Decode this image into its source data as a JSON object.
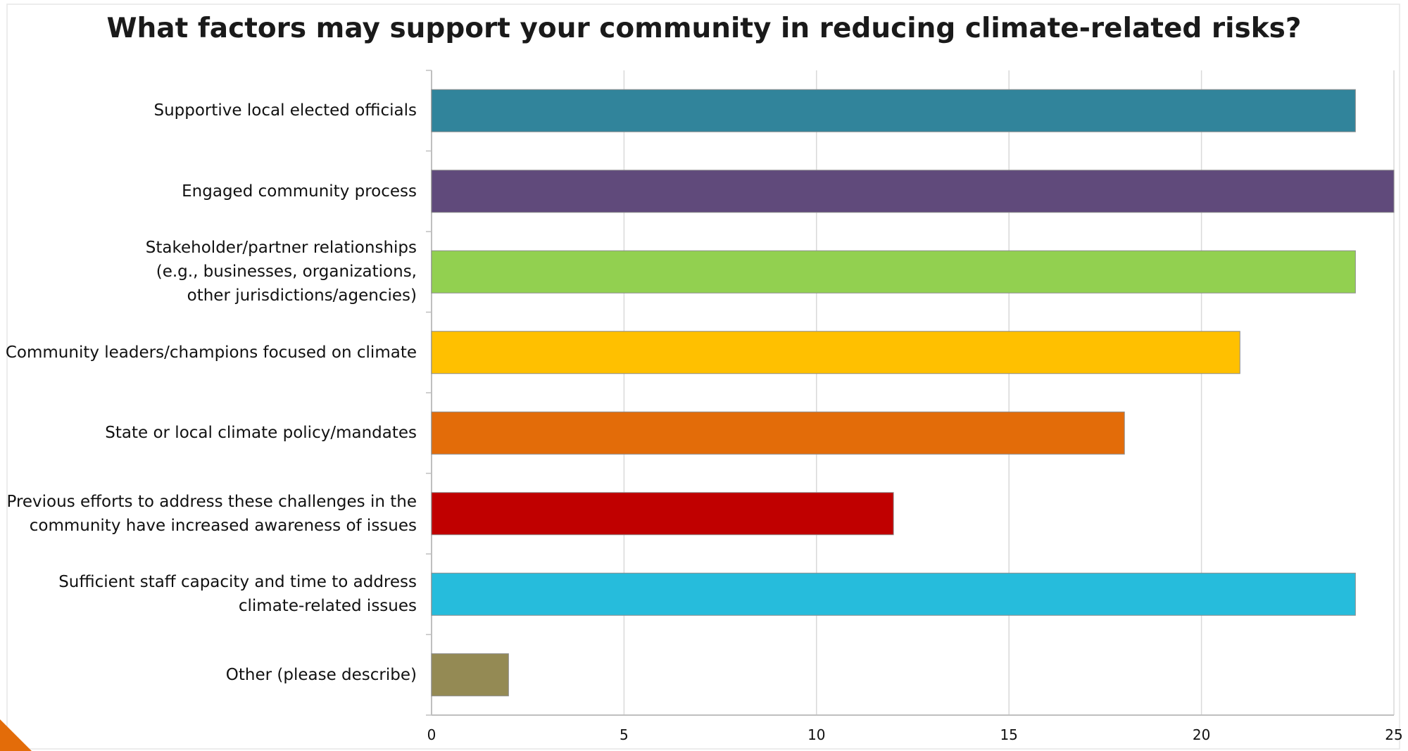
{
  "chart_data": {
    "type": "bar",
    "orientation": "horizontal",
    "title": "What factors may support your community in reducing climate-related risks?",
    "xlabel": "",
    "ylabel": "",
    "xlim": [
      0,
      25
    ],
    "xticks": [
      "0",
      "5",
      "10",
      "15",
      "20",
      "25"
    ],
    "grid": true,
    "legend": "none",
    "categories": [
      "Supportive local elected officials",
      "Engaged community process",
      "Stakeholder/partner relationships\n(e.g., businesses, organizations,\nother jurisdictions/agencies)",
      "Community leaders/champions focused on climate",
      "State or local climate policy/mandates",
      "Previous efforts to address these challenges in the\ncommunity have increased awareness of issues",
      "Sufficient staff capacity and time to address\nclimate-related issues",
      "Other (please describe)"
    ],
    "values": [
      24,
      25,
      24,
      21,
      18,
      12,
      24,
      2
    ],
    "colors": [
      "#31849b",
      "#604a7b",
      "#92d050",
      "#ffc000",
      "#e36c09",
      "#c00000",
      "#26bcdc",
      "#948a54"
    ]
  },
  "accent_color": "#e36c09"
}
